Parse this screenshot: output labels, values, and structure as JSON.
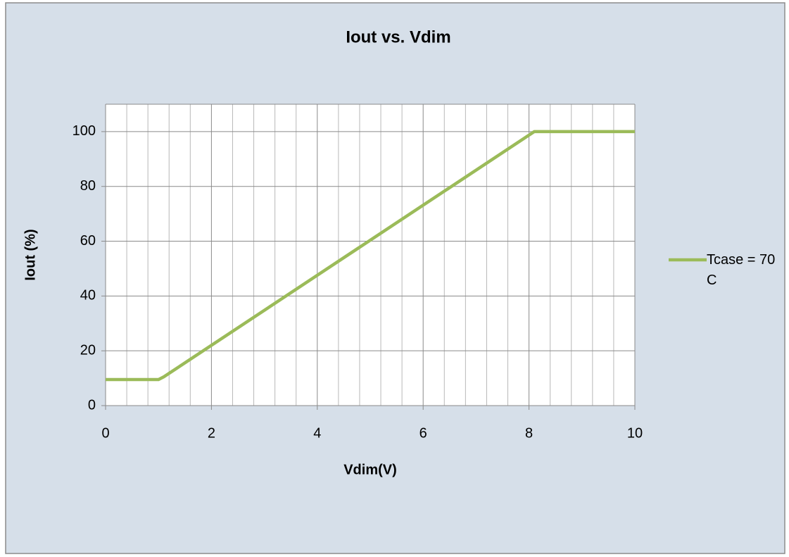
{
  "chart_data": {
    "type": "line",
    "title": "Iout vs. Vdim",
    "x_label": "Vdim(V)",
    "y_label": "Iout (%)",
    "x": [
      0,
      1,
      1.1,
      8.1,
      10
    ],
    "series": [
      {
        "name": "Tcase = 70 C",
        "color": "#9bbb59",
        "values": [
          9.5,
          9.5,
          10.5,
          100,
          100
        ]
      }
    ],
    "xlim": [
      0,
      10
    ],
    "xticks": [
      0,
      2,
      4,
      6,
      8,
      10
    ],
    "xminorticks": [
      0.4,
      0.8,
      1.2,
      1.6,
      2.4,
      2.8,
      3.2,
      3.6,
      4.4,
      4.8,
      5.2,
      5.6,
      6.4,
      6.8,
      7.2,
      7.6,
      8.4,
      8.8,
      9.2,
      9.6
    ],
    "ylim": [
      0,
      110
    ],
    "yticks": [
      0,
      20,
      40,
      60,
      80,
      100
    ],
    "grid": true,
    "legend": "right"
  }
}
